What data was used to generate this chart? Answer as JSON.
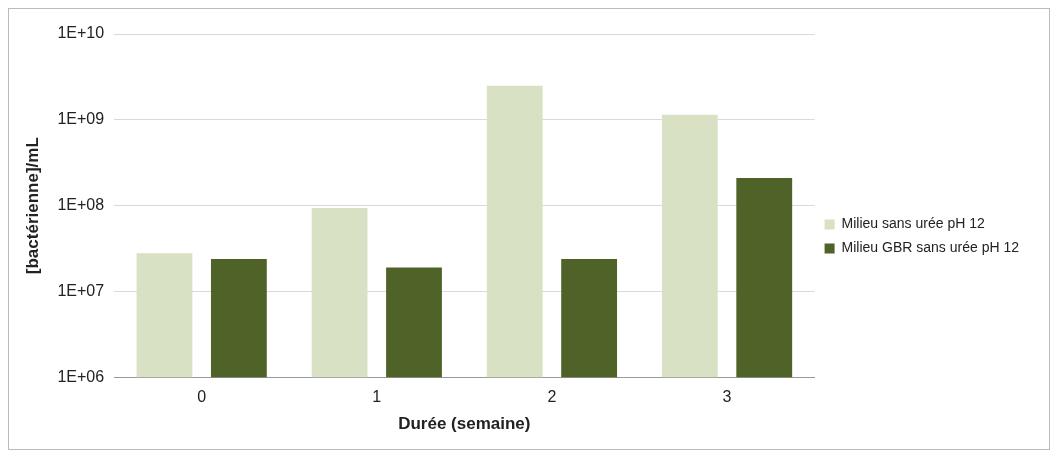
{
  "chart_data": {
    "type": "bar",
    "xlabel": "Durée (semaine)",
    "ylabel": "[bactérienne]/mL",
    "categories": [
      "0",
      "1",
      "2",
      "3"
    ],
    "series": [
      {
        "name": "Milieu sans urée pH 12",
        "color": "#d9e1c4",
        "values": [
          28000000,
          94000000,
          2500000000,
          1150000000
        ]
      },
      {
        "name": "Milieu GBR sans urée pH 12",
        "color": "#4f6228",
        "values": [
          24000000,
          19000000,
          24000000,
          210000000
        ]
      }
    ],
    "log": "y",
    "ylim": [
      1000000,
      10000000000
    ],
    "yticks": [
      {
        "value": 1000000,
        "label": "1E+06"
      },
      {
        "value": 10000000,
        "label": "1E+07"
      },
      {
        "value": 100000000,
        "label": "1E+08"
      },
      {
        "value": 1000000000,
        "label": "1E+09"
      },
      {
        "value": 10000000000,
        "label": "1E+10"
      }
    ],
    "grid": "y",
    "legend": "right"
  }
}
